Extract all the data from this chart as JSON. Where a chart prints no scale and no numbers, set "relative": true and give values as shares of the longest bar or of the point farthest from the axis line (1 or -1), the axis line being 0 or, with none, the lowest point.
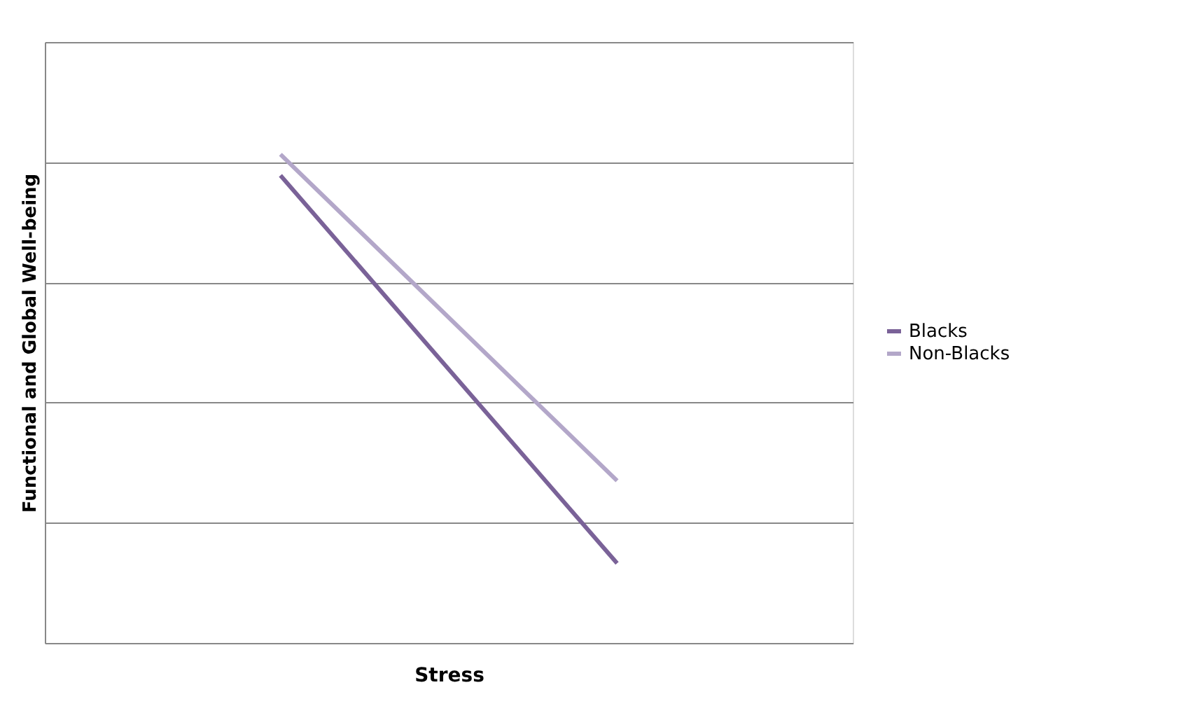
{
  "chart_data": {
    "type": "line",
    "relative": true,
    "xlabel": "Stress",
    "ylabel": "Functional and Global Well-being",
    "categories": [
      null,
      null
    ],
    "series": [
      {
        "name": "Blacks",
        "color": "#7a6298",
        "values": [
          0.957,
          0.163
        ]
      },
      {
        "name": "Non-Blacks",
        "color": "#b3a7c9",
        "values": [
          1,
          0.332
        ]
      }
    ],
    "grid": "y",
    "legend": "right",
    "marker": "none",
    "line_style": "solid"
  }
}
